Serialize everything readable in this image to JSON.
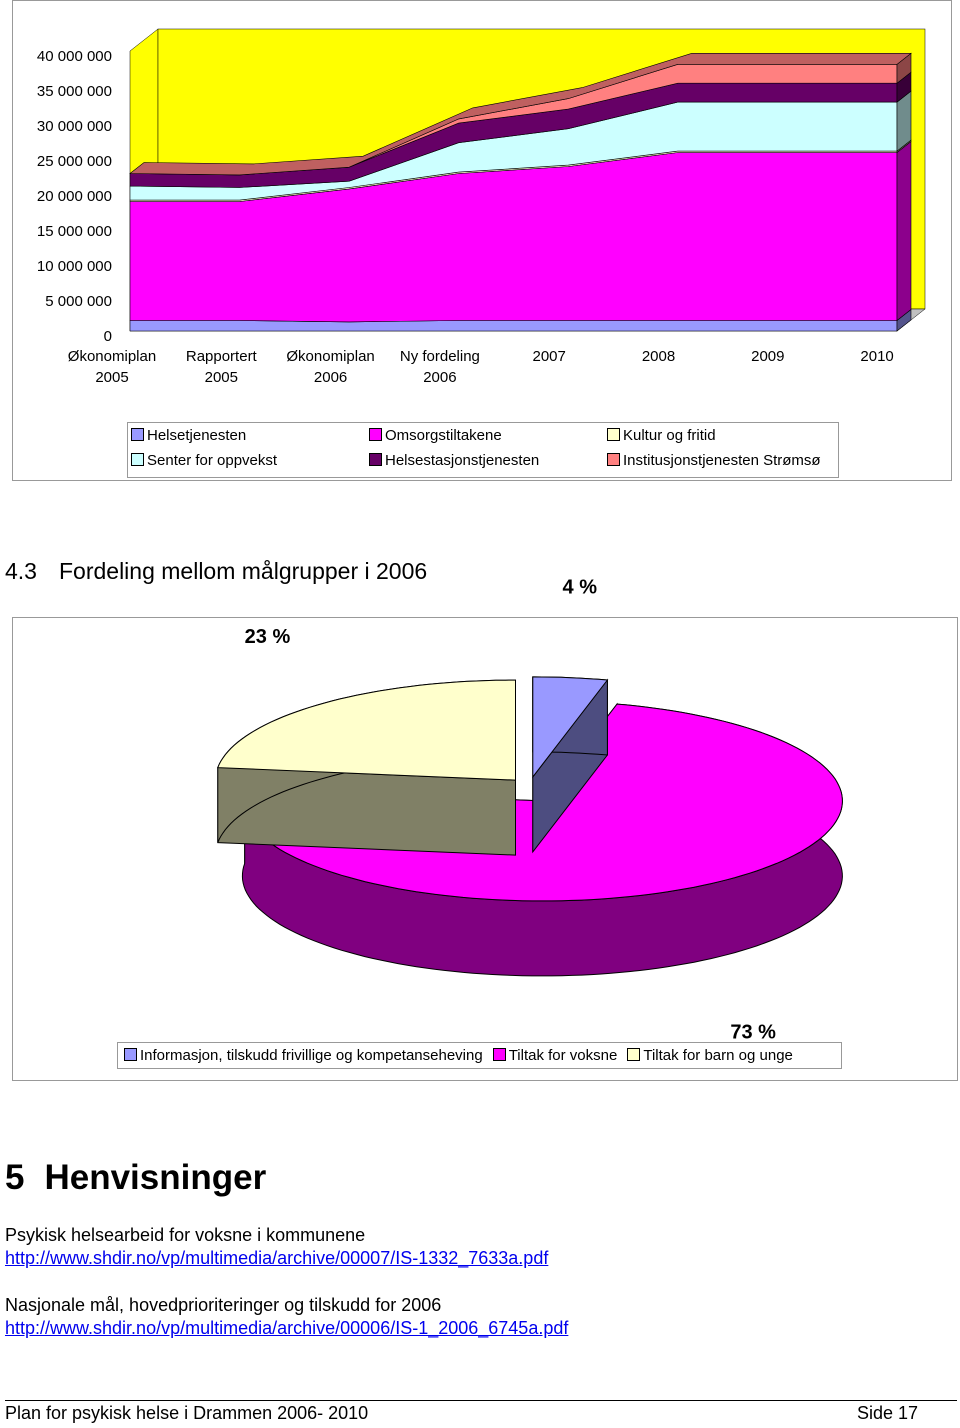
{
  "chart_data": [
    {
      "type": "area",
      "stacked": true,
      "categories": [
        "Økonomiplan 2005",
        "Rapportert 2005",
        "Økonomiplan 2006",
        "Ny fordeling 2006",
        "2007",
        "2008",
        "2009",
        "2010"
      ],
      "series": [
        {
          "name": "Helsetjenesten",
          "color": "#9999ff",
          "values": [
            1500000,
            1500000,
            1300000,
            1500000,
            1500000,
            1500000,
            1500000,
            1500000
          ]
        },
        {
          "name": "Omsorgstiltakene",
          "color": "#ff00ff",
          "values": [
            17000000,
            17000000,
            19000000,
            21000000,
            22000000,
            24000000,
            24000000,
            24000000
          ]
        },
        {
          "name": "Kultur og fritid",
          "color": "#ffffcc",
          "values": [
            200000,
            200000,
            200000,
            200000,
            200000,
            200000,
            200000,
            200000
          ]
        },
        {
          "name": "Senter for oppvekst",
          "color": "#ccffff",
          "values": [
            2000000,
            1800000,
            900000,
            4200000,
            5200000,
            7000000,
            7000000,
            7000000
          ]
        },
        {
          "name": "Helsestasjonstjenesten",
          "color": "#660066",
          "values": [
            1800000,
            1800000,
            2000000,
            2800000,
            2800000,
            2700000,
            2700000,
            2700000
          ]
        },
        {
          "name": "Institusjonstjenesten Strømsø",
          "color": "#ff8080",
          "values": [
            0,
            0,
            0,
            600000,
            1500000,
            2700000,
            2700000,
            2700000
          ]
        }
      ],
      "ylim": [
        0,
        40000000
      ],
      "yticks": [
        0,
        {
          "value": 5000000,
          "label": "5 000 000"
        },
        {
          "value": 10000000,
          "label": "10 000 000"
        },
        {
          "value": 15000000,
          "label": "15 000 000"
        },
        {
          "value": 20000000,
          "label": "20 000 000"
        },
        {
          "value": 25000000,
          "label": "25 000 000"
        },
        {
          "value": 30000000,
          "label": "30 000 000"
        },
        {
          "value": 35000000,
          "label": "35 000 000"
        },
        {
          "value": 40000000,
          "label": "40 000 000"
        }
      ],
      "background": "#ffff00",
      "legend": "bottom"
    },
    {
      "type": "pie",
      "three_d": true,
      "categories": [
        "Informasjon, tilskudd frivillige og kompetanseheving",
        "Tiltak for voksne",
        "Tiltak for barn og unge"
      ],
      "values": [
        4,
        73,
        23
      ],
      "value_labels": [
        "4 %",
        "73 %",
        "23 %"
      ],
      "colors": [
        "#9999ff",
        "#ff00ff",
        "#ffffcc"
      ],
      "legend": "bottom"
    }
  ],
  "heading": {
    "number": "4.3",
    "title": "Fordeling mellom målgrupper i 2006"
  },
  "section": {
    "number": "5",
    "title": "Henvisninger"
  },
  "references": [
    {
      "title": "Psykisk helsearbeid for voksne i kommunene",
      "url": "http://www.shdir.no/vp/multimedia/archive/00007/IS-1332_7633a.pdf"
    },
    {
      "title": "Nasjonale mål, hovedprioriteringer og tilskudd for 2006",
      "url": "http://www.shdir.no/vp/multimedia/archive/00006/IS-1_2006_6745a.pdf"
    }
  ],
  "footer": {
    "left": "Plan for psykisk helse i Drammen 2006- 2010",
    "right": "Side 17"
  }
}
